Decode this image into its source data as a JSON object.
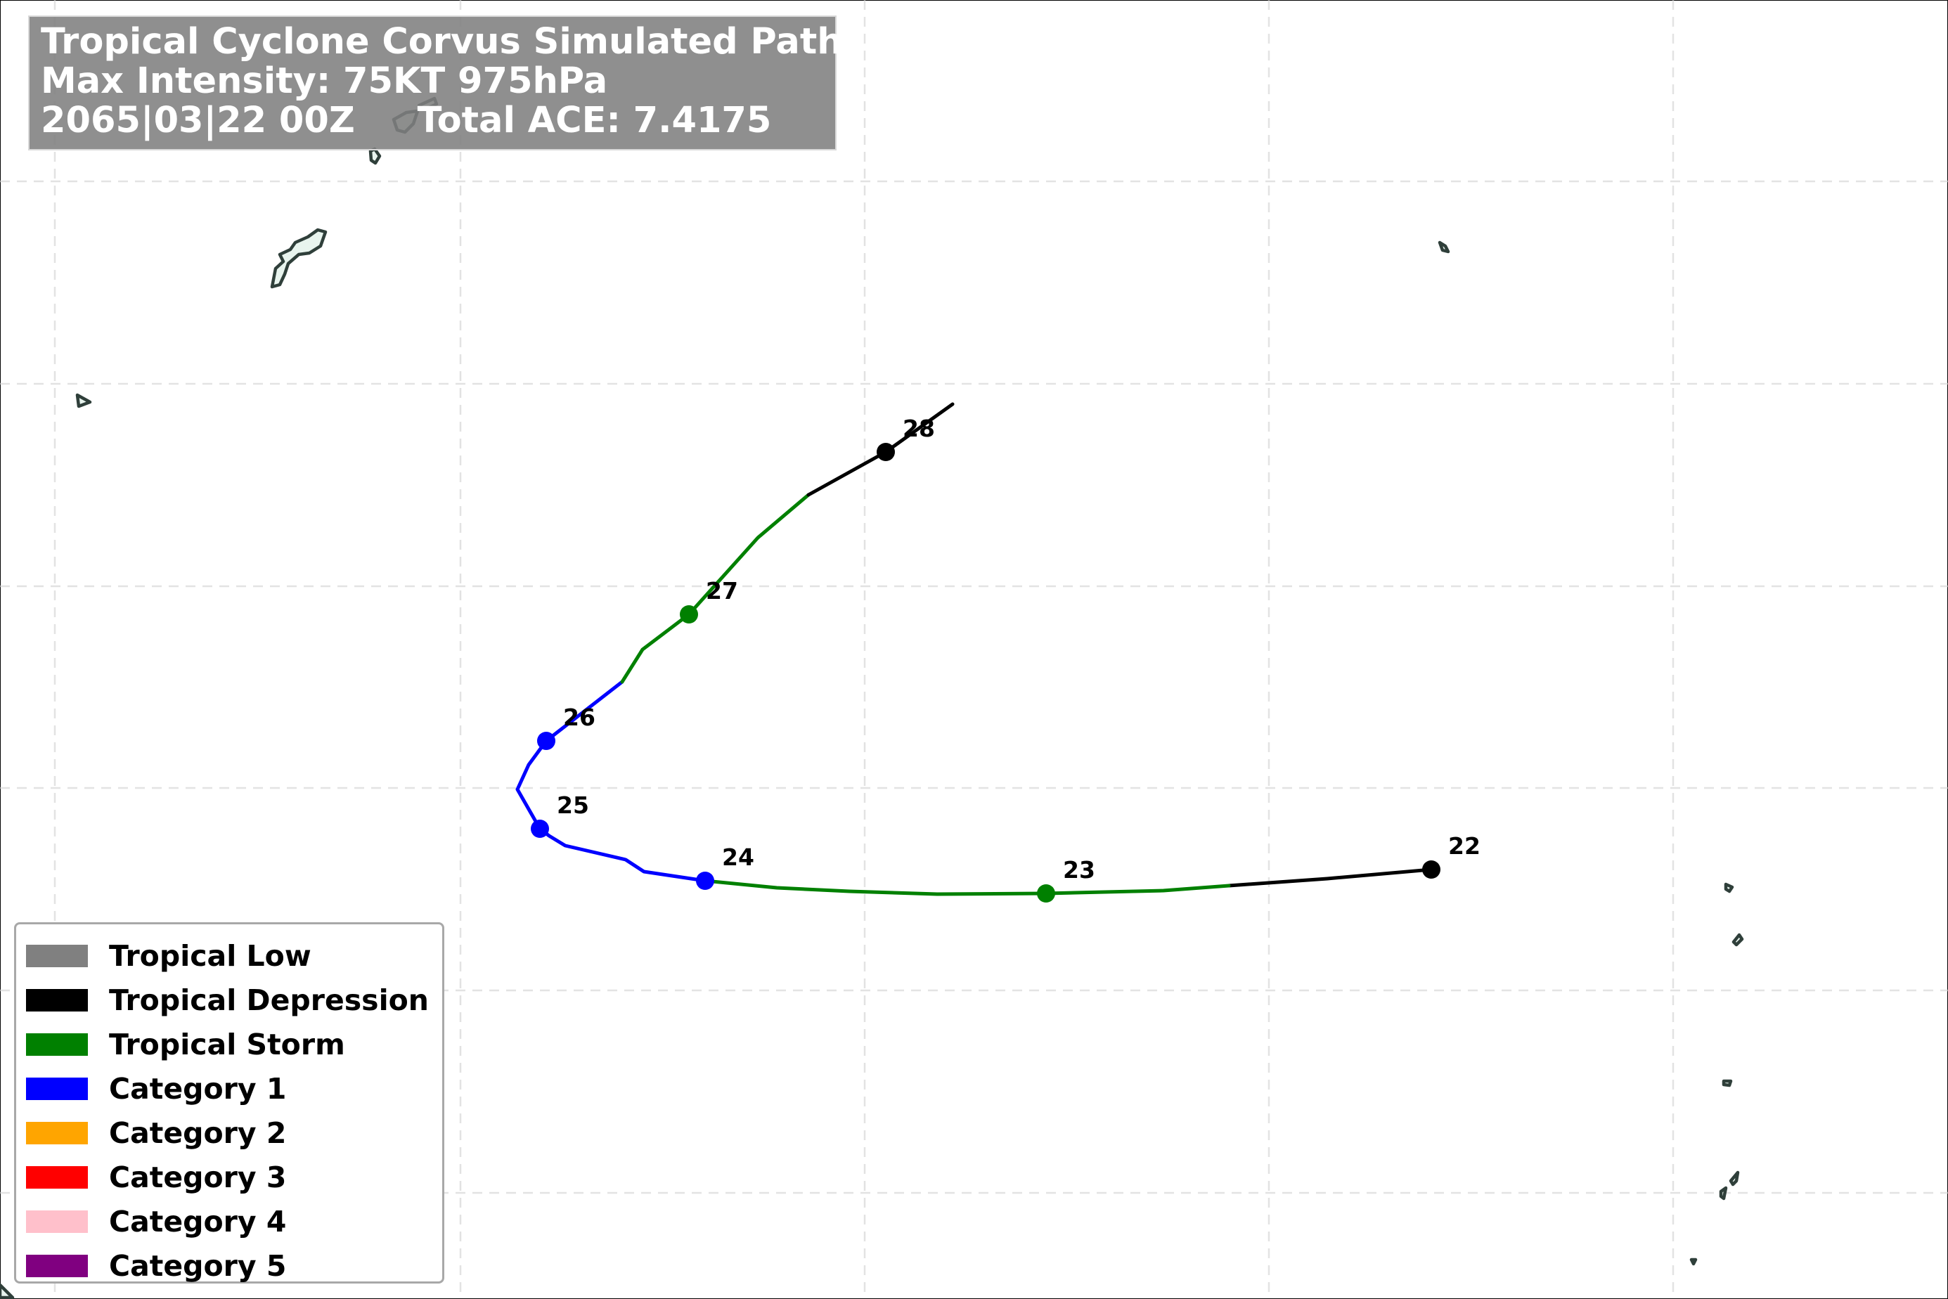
{
  "title": {
    "line1": "Tropical Cyclone Corvus Simulated Path",
    "line2": "Max Intensity: 75KT 975hPa",
    "line3": "2065|03|22 00Z     Total ACE: 7.4175"
  },
  "legend": {
    "items": [
      {
        "label": "Tropical Low",
        "color": "#808080"
      },
      {
        "label": "Tropical Depression",
        "color": "#000000"
      },
      {
        "label": "Tropical Storm",
        "color": "#008000"
      },
      {
        "label": "Category 1",
        "color": "#0000ff"
      },
      {
        "label": "Category 2",
        "color": "#ffa500"
      },
      {
        "label": "Category 3",
        "color": "#ff0000"
      },
      {
        "label": "Category 4",
        "color": "#ffc0cb"
      },
      {
        "label": "Category 5",
        "color": "#800080"
      }
    ]
  },
  "track": {
    "markers": [
      {
        "day": "22",
        "category": "Tropical Depression",
        "color": "#000000"
      },
      {
        "day": "23",
        "category": "Tropical Storm",
        "color": "#008000"
      },
      {
        "day": "24",
        "category": "Category 1",
        "color": "#0000ff"
      },
      {
        "day": "25",
        "category": "Category 1",
        "color": "#0000ff"
      },
      {
        "day": "26",
        "category": "Category 1",
        "color": "#0000ff"
      },
      {
        "day": "27",
        "category": "Tropical Storm",
        "color": "#008000"
      },
      {
        "day": "28",
        "category": "Tropical Depression",
        "color": "#000000"
      }
    ]
  }
}
